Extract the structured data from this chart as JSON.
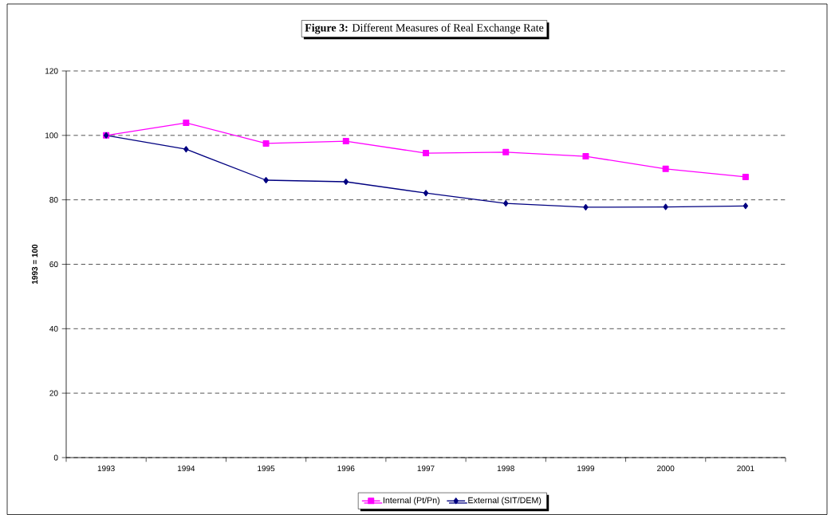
{
  "chart_data": {
    "type": "line",
    "title": "**Figure 3:** Different Measures of Real Exchange Rate",
    "ylabel": "1993 = 100",
    "categories": [
      "1993",
      "1994",
      "1995",
      "1996",
      "1997",
      "1998",
      "1999",
      "2000",
      "2001"
    ],
    "series": [
      {
        "name": "Internal (Pt/Pn)",
        "color": "#ff00ff",
        "marker": "square",
        "values": [
          100,
          103.9,
          97.5,
          98.2,
          94.5,
          94.8,
          93.5,
          89.6,
          87.1
        ]
      },
      {
        "name": "External (SIT/DEM)",
        "color": "#000080",
        "marker": "diamond",
        "values": [
          100,
          95.7,
          86.1,
          85.6,
          82.1,
          78.9,
          77.7,
          77.8,
          78.1
        ]
      }
    ],
    "ylim": [
      0,
      120
    ],
    "yticks": [
      0,
      20,
      40,
      60,
      80,
      100,
      120
    ],
    "grid": "y",
    "legend": "bottom",
    "line_style": "solid"
  }
}
